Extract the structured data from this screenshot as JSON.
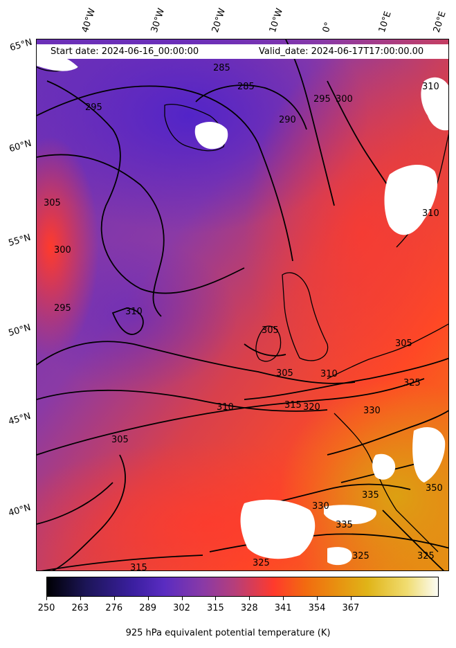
{
  "header": {
    "start_date": "Start date: 2024-06-16_00:00:00",
    "valid_date": "Valid_date: 2024-06-17T17:00:00.00"
  },
  "longitude_labels": [
    "40°W",
    "30°W",
    "20°W",
    "10°W",
    "0°",
    "10°E",
    "20°E"
  ],
  "latitude_labels": [
    "65°N",
    "60°N",
    "55°N",
    "50°N",
    "45°N",
    "40°N"
  ],
  "contour_labels": [
    "285",
    "285",
    "295",
    "290",
    "295",
    "300",
    "310",
    "310",
    "305",
    "300",
    "295",
    "310",
    "305",
    "305",
    "310",
    "305",
    "310",
    "315",
    "320",
    "325",
    "330",
    "305",
    "335",
    "330",
    "350",
    "335",
    "325",
    "325",
    "325",
    "315"
  ],
  "colorbar": {
    "ticks": [
      "250",
      "263",
      "276",
      "289",
      "302",
      "315",
      "328",
      "341",
      "354",
      "367"
    ],
    "title": "925 hPa equivalent potential temperature (K)"
  },
  "colors": {
    "cold": "#5a2cc1",
    "mid": "#b63e7a",
    "warm": "#ff3a2c",
    "hot": "#e89010",
    "contour": "#000000",
    "masked": "#ffffff"
  }
}
